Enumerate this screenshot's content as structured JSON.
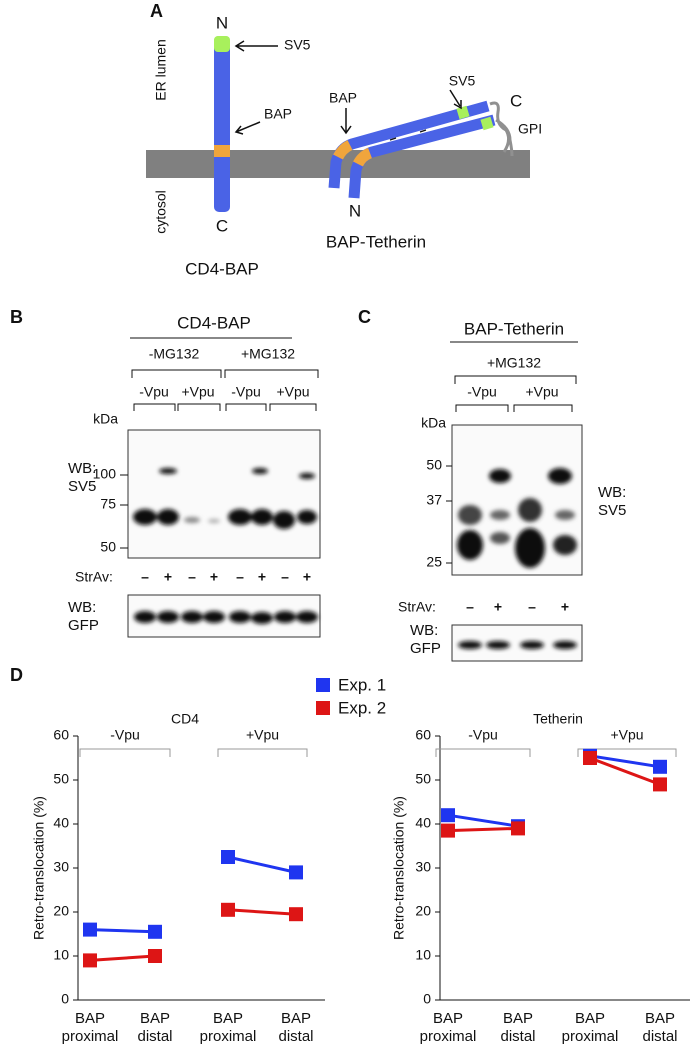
{
  "panel_a": {
    "letter": "A",
    "cd4": {
      "n": "N",
      "sv5": "SV5",
      "lumen": "ER lumen",
      "bap": "BAP",
      "cytosol": "cytosol",
      "c": "C",
      "name": "CD4-BAP"
    },
    "tetherin": {
      "bap": "BAP",
      "sv5": "SV5",
      "c": "C",
      "gpi": "GPI",
      "n": "N",
      "name": "BAP-Tetherin"
    }
  },
  "panel_b": {
    "letter": "B",
    "construct": "CD4-BAP",
    "treatments": [
      "-MG132",
      "+MG132"
    ],
    "conditions": [
      "-Vpu",
      "+Vpu",
      "-Vpu",
      "+Vpu"
    ],
    "kda": "kDa",
    "markers": [
      "100",
      "75",
      "50"
    ],
    "wb_top": "WB:\nSV5",
    "strav": "StrAv:",
    "signs": [
      "–",
      "+",
      "–",
      "+",
      "–",
      "+",
      "–",
      "+"
    ],
    "wb_bottom": "WB:\nGFP"
  },
  "panel_c": {
    "letter": "C",
    "construct": "BAP-Tetherin",
    "treatment": "+MG132",
    "conditions": [
      "-Vpu",
      "+Vpu"
    ],
    "kda": "kDa",
    "markers": [
      "50",
      "37",
      "25"
    ],
    "wb_top": "WB:\nSV5",
    "strav": "StrAv:",
    "signs": [
      "–",
      "+",
      "–",
      "+"
    ],
    "wb_bottom": "WB:\nGFP"
  },
  "panel_d": {
    "letter": "D"
  },
  "chart_data": [
    {
      "type": "line",
      "title": "CD4",
      "y_label": "Retro-translocation (%)",
      "groups": [
        {
          "name": "-Vpu",
          "categories": [
            "BAP\nproximal",
            "BAP\ndistal"
          ]
        },
        {
          "name": "+Vpu",
          "categories": [
            "BAP\nproximal",
            "BAP\ndistal"
          ]
        }
      ],
      "series": [
        {
          "name": "Exp. 1",
          "color": "#1f35f0",
          "values": [
            [
              16,
              15.5
            ],
            [
              32.5,
              29
            ]
          ]
        },
        {
          "name": "Exp. 2",
          "color": "#dd1515",
          "values": [
            [
              9,
              10
            ],
            [
              20.5,
              19.5
            ]
          ]
        }
      ],
      "ylim": [
        0,
        60
      ],
      "yticks": [
        0,
        10,
        20,
        30,
        40,
        50,
        60
      ]
    },
    {
      "type": "line",
      "title": "Tetherin",
      "y_label": "Retro-translocation (%)",
      "groups": [
        {
          "name": "-Vpu",
          "categories": [
            "BAP\nproximal",
            "BAP\ndistal"
          ]
        },
        {
          "name": "+Vpu",
          "categories": [
            "BAP\nproximal",
            "BAP\ndistal"
          ]
        }
      ],
      "series": [
        {
          "name": "Exp. 1",
          "color": "#1f35f0",
          "values": [
            [
              42,
              39.5
            ],
            [
              55.5,
              53
            ]
          ]
        },
        {
          "name": "Exp. 2",
          "color": "#dd1515",
          "values": [
            [
              38.5,
              39
            ],
            [
              55,
              49
            ]
          ]
        }
      ],
      "ylim": [
        0,
        60
      ],
      "yticks": [
        0,
        10,
        20,
        30,
        40,
        50,
        60
      ]
    }
  ]
}
